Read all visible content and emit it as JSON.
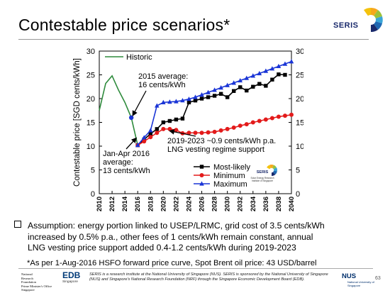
{
  "slide": {
    "title": "Contestable price scenarios*",
    "logo_text": "SERIS",
    "bullet_line1": "Assumption: energy portion linked to USEP/LRMC, grid cost of 3.5 cents/kWh",
    "bullet_line2": "increased by 0.5% p.a., other fees of 1 cents/kWh remain constant, annual",
    "bullet_line3": "LNG vesting price support added 0.4-1.2 cents/kWh during 2019-2023",
    "footnote": "*As per 1-Aug-2016 HSFO forward price curve, Spot Brent oil price: 43 USD/barrel",
    "footer": {
      "nrf_line1": "National",
      "nrf_line2": "Research",
      "nrf_line3": "Foundation",
      "nrf_line4": "Prime Minister's Office",
      "nrf_line5": "Singapore",
      "edb": "EDB",
      "edb_sub": "Singapore",
      "text": "SERIS is a research institute at the National University of Singapore (NUS). SERIS is sponsored by the National University of Singapore (NUS) and Singapore's National Research Foundation (NRF) through the Singapore Economic Development Board (EDB).",
      "nus": "NUS",
      "nus_sub": "National University of Singapore",
      "page_number": "63"
    }
  },
  "chart_data": {
    "type": "line",
    "ylabel": "Contestable price [SGD cents/kWh]",
    "ylim": [
      0,
      30
    ],
    "xlim": [
      2010,
      2040
    ],
    "y_ticks": [
      "0",
      "5",
      "10",
      "15",
      "20",
      "25",
      "30"
    ],
    "x_ticks": [
      "2010",
      "2012",
      "2014",
      "2016",
      "2018",
      "2020",
      "2022",
      "2024",
      "2026",
      "2028",
      "2030",
      "2032",
      "2034",
      "2036",
      "2038",
      "2040"
    ],
    "series": [
      {
        "name": "Historic",
        "color": "#2e8b3c",
        "marker": "none",
        "x": [
          2010,
          2011,
          2012,
          2013,
          2014,
          2015,
          2016
        ],
        "y": [
          17.5,
          23.2,
          24.8,
          21.8,
          19.2,
          16.0,
          10.2
        ]
      },
      {
        "name": "Most-likely",
        "color": "#000000",
        "marker": "square",
        "x": [
          2016,
          2017,
          2018,
          2019,
          2020,
          2021,
          2022,
          2023,
          2024,
          2025,
          2026,
          2027,
          2028,
          2029,
          2030,
          2031,
          2032,
          2033,
          2034,
          2035,
          2036,
          2037,
          2038,
          2039
        ],
        "y": [
          10.2,
          11.4,
          12.6,
          13.6,
          15.0,
          15.3,
          15.6,
          15.8,
          19.2,
          19.6,
          20.0,
          20.3,
          20.6,
          21.0,
          20.3,
          21.6,
          22.4,
          21.7,
          22.5,
          23.1,
          22.7,
          24.0,
          25.1,
          25.0
        ]
      },
      {
        "name": "Minimum",
        "color": "#e31b1b",
        "marker": "circle",
        "x": [
          2016,
          2017,
          2018,
          2019,
          2020,
          2021,
          2022,
          2023,
          2024,
          2025,
          2026,
          2027,
          2028,
          2029,
          2030,
          2031,
          2032,
          2033,
          2034,
          2035,
          2036,
          2037,
          2038,
          2039,
          2040
        ],
        "y": [
          10.2,
          11.0,
          11.9,
          12.8,
          13.6,
          13.6,
          13.4,
          12.7,
          12.8,
          12.8,
          12.8,
          12.9,
          13.0,
          13.3,
          13.6,
          13.9,
          14.3,
          14.6,
          15.0,
          15.3,
          15.6,
          15.9,
          16.2,
          16.4,
          16.6
        ]
      },
      {
        "name": "Maximum",
        "color": "#1a35d6",
        "marker": "triangle",
        "x": [
          2016,
          2017,
          2018,
          2019,
          2020,
          2021,
          2022,
          2023,
          2024,
          2025,
          2026,
          2027,
          2028,
          2029,
          2030,
          2031,
          2032,
          2033,
          2034,
          2035,
          2036,
          2037,
          2038,
          2039,
          2040
        ],
        "y": [
          10.2,
          11.8,
          13.3,
          18.5,
          19.2,
          19.3,
          19.4,
          19.6,
          19.9,
          20.3,
          20.8,
          21.3,
          21.8,
          22.3,
          22.8,
          23.3,
          23.8,
          24.3,
          24.8,
          25.3,
          25.8,
          26.3,
          26.8,
          27.3,
          27.8
        ]
      }
    ],
    "markers_extra": [
      {
        "x": 2015,
        "y": 16.0,
        "color": "#1a35d6",
        "shape": "circle"
      }
    ],
    "annotations": [
      {
        "id": "ann-2015-1",
        "text": "2015 average:"
      },
      {
        "id": "ann-2015-2",
        "text": "16 cents/kWh"
      },
      {
        "id": "ann-janapr-1",
        "text": "Jan-Apr 2016"
      },
      {
        "id": "ann-janapr-2",
        "text": "average:"
      },
      {
        "id": "ann-janapr-3",
        "text": "13 cents/kWh"
      },
      {
        "id": "ann-lng-1",
        "text": "2019-2023 ~0.9 cents/kWh p.a."
      },
      {
        "id": "ann-lng-2",
        "text": "LNG vesting regime support"
      }
    ],
    "inset_logo": {
      "text": "SERIS",
      "sub1": "Solar Energy Research",
      "sub2": "Institute of Singapore"
    }
  }
}
